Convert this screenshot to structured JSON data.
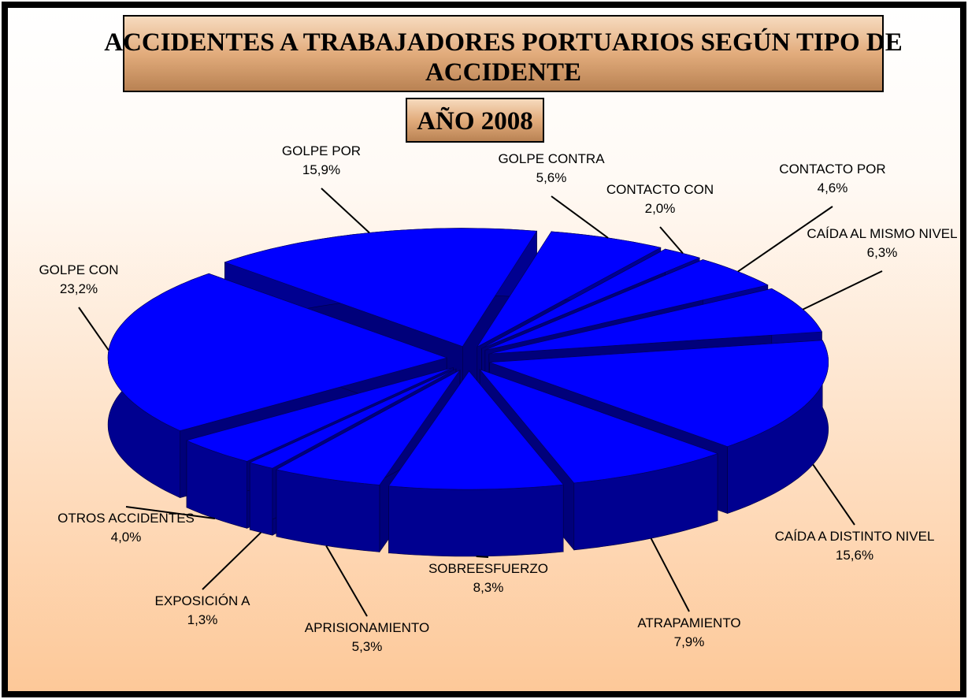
{
  "chart_data": {
    "type": "pie3d",
    "title": "ACCIDENTES A TRABAJADORES PORTUARIOS SEGÚN TIPO DE ACCIDENTE",
    "subtitle": "AÑO 2008",
    "categories": [
      "GOLPE CONTRA",
      "CONTACTO CON",
      "CONTACTO POR",
      "CAÍDA AL MISMO NIVEL",
      "CAÍDA A DISTINTO NIVEL",
      "ATRAPAMIENTO",
      "SOBREESFUERZO",
      "APRISIONAMIENTO",
      "EXPOSICIÓN A",
      "OTROS ACCIDENTES",
      "GOLPE CON",
      "GOLPE POR"
    ],
    "values": [
      5.6,
      2.0,
      4.6,
      6.3,
      15.6,
      7.9,
      8.3,
      5.3,
      1.3,
      4.0,
      23.2,
      15.9
    ],
    "value_labels": [
      "5,6%",
      "2,0%",
      "4,6%",
      "6,3%",
      "15,6%",
      "7,9%",
      "8,3%",
      "5,3%",
      "1,3%",
      "4,0%",
      "23,2%",
      "15,9%"
    ],
    "color": "#0000ff"
  }
}
